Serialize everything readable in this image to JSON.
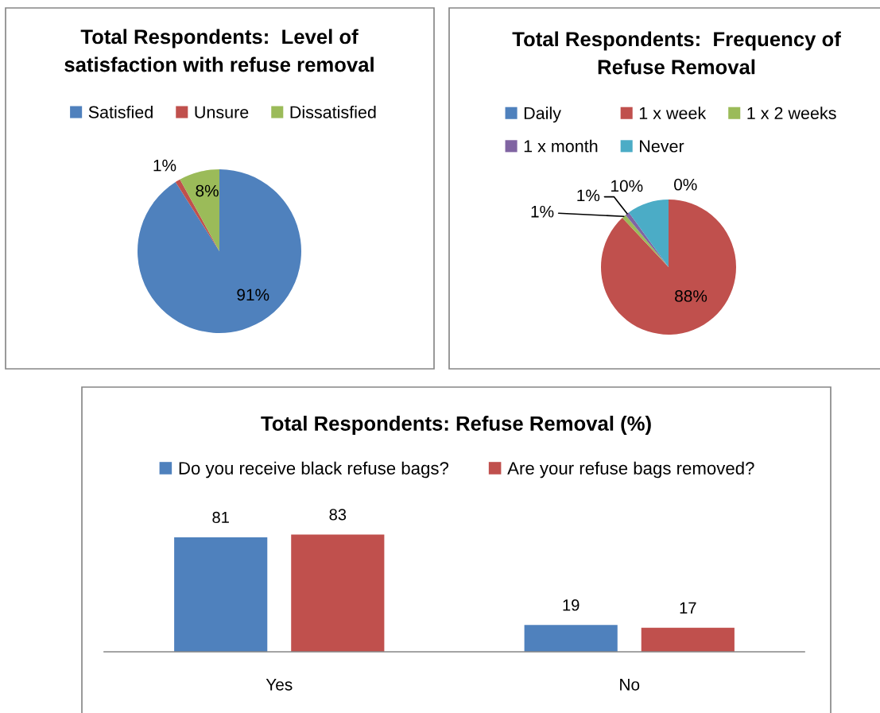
{
  "chart_data": [
    {
      "type": "pie",
      "title": "Total Respondents:  Level of\nsatisfaction with refuse removal",
      "categories": [
        "Satisfied",
        "Unsure",
        "Dissatisfied"
      ],
      "values": [
        91,
        1,
        8
      ],
      "colors": [
        "#4f81bd",
        "#c0504d",
        "#9bbb59"
      ],
      "value_labels": [
        "91%",
        "1%",
        "8%"
      ],
      "legend": "top"
    },
    {
      "type": "pie",
      "title": "Total Respondents:  Frequency of\nRefuse Removal",
      "categories": [
        "Daily",
        "1 x week",
        "1 x 2 weeks",
        "1 x month",
        "Never"
      ],
      "values": [
        0,
        88,
        1,
        1,
        10
      ],
      "colors": [
        "#4f81bd",
        "#c0504d",
        "#9bbb59",
        "#8064a2",
        "#4bacc6"
      ],
      "value_labels": [
        "0%",
        "88%",
        "1%",
        "1%",
        "10%"
      ],
      "legend": "top"
    },
    {
      "type": "bar",
      "title": "Total Respondents: Refuse Removal (%)",
      "categories": [
        "Yes",
        "No"
      ],
      "series": [
        {
          "name": "Do you receive black refuse bags?",
          "color": "#4f81bd",
          "values": [
            81,
            19
          ]
        },
        {
          "name": "Are your refuse bags removed?",
          "color": "#c0504d",
          "values": [
            83,
            17
          ]
        }
      ],
      "data_labels": true,
      "legend": "top",
      "tick_labels": "x"
    }
  ]
}
